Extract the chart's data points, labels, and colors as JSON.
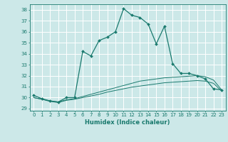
{
  "title": "",
  "xlabel": "Humidex (Indice chaleur)",
  "background_color": "#cce8e8",
  "grid_color": "#ffffff",
  "line_color": "#1a7a6e",
  "x": [
    0,
    1,
    2,
    3,
    4,
    5,
    6,
    7,
    8,
    9,
    10,
    11,
    12,
    13,
    14,
    15,
    16,
    17,
    18,
    19,
    20,
    21,
    22,
    23
  ],
  "y_main": [
    30.2,
    29.9,
    29.7,
    29.6,
    30.0,
    30.0,
    34.2,
    33.8,
    35.2,
    35.5,
    36.0,
    38.1,
    37.5,
    37.3,
    36.7,
    34.9,
    36.5,
    33.1,
    32.2,
    32.2,
    32.0,
    31.7,
    30.8,
    30.7
  ],
  "y_lower1": [
    30.0,
    29.85,
    29.7,
    29.6,
    29.8,
    29.9,
    30.1,
    30.3,
    30.5,
    30.7,
    30.9,
    31.1,
    31.3,
    31.5,
    31.6,
    31.7,
    31.8,
    31.85,
    31.9,
    31.95,
    32.0,
    31.9,
    31.6,
    30.7
  ],
  "y_lower2": [
    30.0,
    29.85,
    29.65,
    29.55,
    29.75,
    29.85,
    30.0,
    30.15,
    30.3,
    30.5,
    30.65,
    30.8,
    30.95,
    31.05,
    31.15,
    31.25,
    31.35,
    31.4,
    31.45,
    31.5,
    31.55,
    31.5,
    31.3,
    30.6
  ],
  "ylim": [
    28.8,
    38.5
  ],
  "yticks": [
    29,
    30,
    31,
    32,
    33,
    34,
    35,
    36,
    37,
    38
  ],
  "xlim": [
    -0.5,
    23.5
  ],
  "xticks": [
    0,
    1,
    2,
    3,
    4,
    5,
    6,
    7,
    8,
    9,
    10,
    11,
    12,
    13,
    14,
    15,
    16,
    17,
    18,
    19,
    20,
    21,
    22,
    23
  ],
  "tick_fontsize": 5.0,
  "xlabel_fontsize": 6.0
}
